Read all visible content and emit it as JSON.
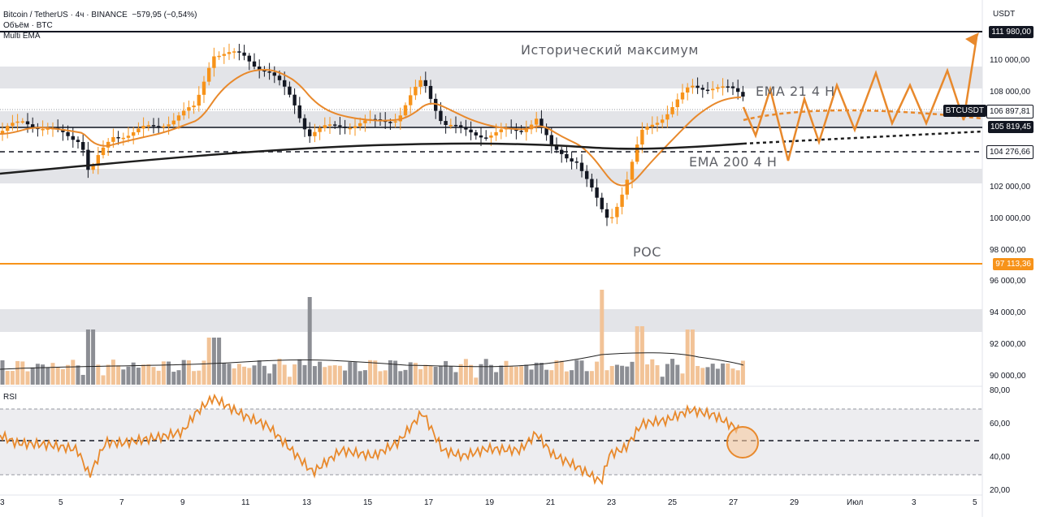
{
  "legend": {
    "symbol_line": "Bitcoin / TetherUS · 4ч · BINANCE",
    "change": "−579,95 (−0,54%)",
    "volume_line": "Объём · BTC",
    "indicator": "Multi EMA"
  },
  "rsi_label": "RSI",
  "axis_currency": "USDT",
  "annotations": {
    "ath": "Исторический максимум",
    "ema21": "EMA 21 4 H",
    "ema200": "EMA 200 4 H",
    "poc": "POC"
  },
  "price_axis_labels": [
    "110 000,00",
    "108 000,00",
    "102 000,00",
    "100 000,00",
    "98 000,00",
    "96 000,00",
    "94 000,00",
    "92 000,00",
    "90 000,00"
  ],
  "rsi_axis_labels": [
    "80,00",
    "60,00",
    "40,00",
    "20,00"
  ],
  "price_tags": {
    "ath": {
      "text": "111 980,00",
      "bg": "#131722",
      "color": "#ffffff"
    },
    "btcusdt_name": {
      "text": "BTCUSDT",
      "bg": "#131722",
      "color": "#ffffff"
    },
    "btcusdt_price": {
      "text": "106 897,81",
      "bg": "#ffffff",
      "color": "#131722"
    },
    "level1": {
      "text": "105 819,45",
      "bg": "#131722",
      "color": "#ffffff"
    },
    "level2": {
      "text": "104 276,66",
      "bg": "#ffffff",
      "color": "#131722"
    },
    "poc": {
      "text": "97 113,36",
      "bg": "#f7931a",
      "color": "#ffffff"
    }
  },
  "time_axis_labels": [
    "3",
    "5",
    "7",
    "9",
    "11",
    "13",
    "15",
    "17",
    "19",
    "21",
    "23",
    "25",
    "27",
    "29",
    "Июл",
    "3",
    "5"
  ],
  "colors": {
    "up": "#f7931a",
    "down": "#131722",
    "ema_fast": "#e8892c",
    "ema_slow": "#1e1e1e",
    "rsi": "#e8892c",
    "zone": "#e3e4e8"
  }
}
